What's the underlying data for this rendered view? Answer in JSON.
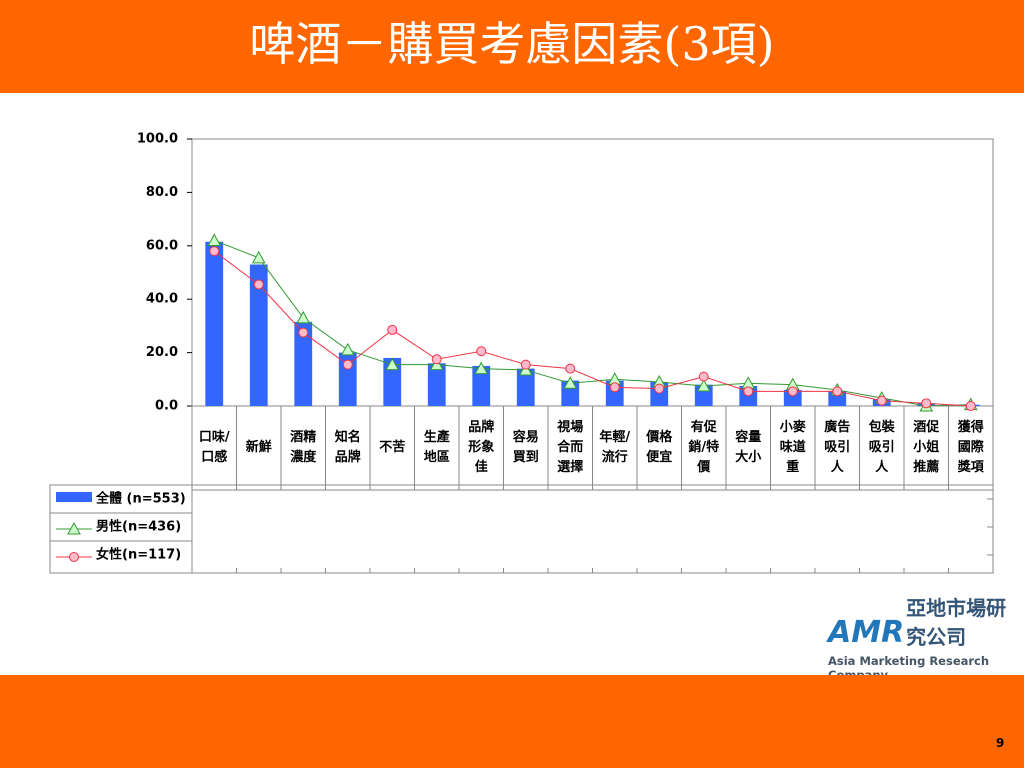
{
  "chart_data": {
    "type": "bar_line",
    "title": "啤酒－購買考慮因素(3項)",
    "categories": [
      "口味/\n口感",
      "新鮮",
      "酒精\n濃度",
      "知名\n品牌",
      "不苦",
      "生產\n地區",
      "品牌\n形象\n佳",
      "容易\n買到",
      "視場\n合而\n選擇",
      "年輕/\n流行",
      "價格\n便宜",
      "有促\n銷/特\n價",
      "容量\n大小",
      "小麥\n味道\n重",
      "廣告\n吸引\n人",
      "包裝\n吸引\n人",
      "酒促\n小姐\n推薦",
      "獲得\n國際\n獎項"
    ],
    "series": [
      {
        "name": "全體 (n=553)",
        "color": "#3366ff",
        "kind": "bar",
        "values": [
          61.5,
          53,
          31.5,
          20,
          18,
          16,
          15,
          14,
          9.5,
          9.5,
          9,
          8,
          7.5,
          6,
          5.5,
          2.5,
          1,
          0.5
        ]
      },
      {
        "name": "男性(n=436)",
        "color": "#339933",
        "kind": "line",
        "marker": "triangle",
        "values": [
          62,
          55.5,
          33,
          21,
          15.5,
          15.5,
          14,
          13.5,
          8.5,
          10,
          9,
          7.5,
          8.5,
          8,
          6,
          3,
          0,
          0.5
        ]
      },
      {
        "name": "女性(n=117)",
        "color": "#ee3344",
        "kind": "line",
        "marker": "circle",
        "values": [
          58,
          45.5,
          27.5,
          15.5,
          28.5,
          17.5,
          20.5,
          15.5,
          14,
          7,
          6.5,
          11,
          5.5,
          5.5,
          5.5,
          2,
          1,
          0
        ]
      }
    ],
    "ylim": [
      0,
      100
    ],
    "yticks": [
      {
        "value": 0,
        "label": "0.0"
      },
      {
        "value": 20,
        "label": "20.0"
      },
      {
        "value": 40,
        "label": "40.0"
      },
      {
        "value": 60,
        "label": "60.0"
      },
      {
        "value": 80,
        "label": "80.0"
      },
      {
        "value": 100,
        "label": "100.0"
      }
    ]
  },
  "logo": {
    "name": "亞地市場研究公司",
    "english": "Asia Marketing Research Company"
  },
  "page_number": "9"
}
